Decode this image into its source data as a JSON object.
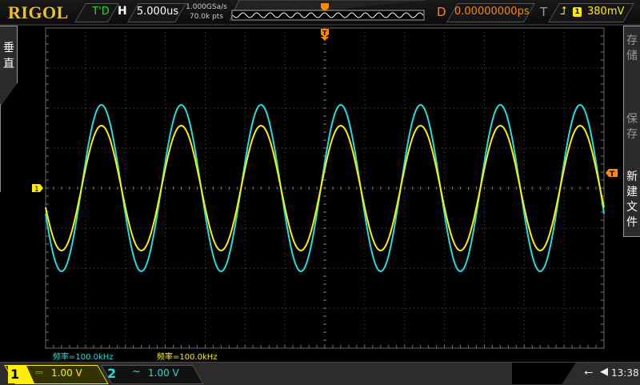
{
  "brand": "RIGOL",
  "header": {
    "run_status": "T'D",
    "horizontal_label": "H",
    "timebase": "5.000us",
    "sample_rate": "1.000GSa/s",
    "memory_depth": "70.0k pts",
    "delay_label": "D",
    "delay": "0.00000000ps",
    "trigger_label": "T",
    "trigger_edge_icon": "rising-edge-icon",
    "trigger_source": "1",
    "trigger_level": "380mV"
  },
  "left_menu": {
    "label": "垂直"
  },
  "right_menu": {
    "items": [
      {
        "label": "存储",
        "enabled": false
      },
      {
        "label": "保存",
        "enabled": false
      },
      {
        "label": "新建文件",
        "enabled": true
      }
    ]
  },
  "markers": {
    "ch1_ground": "1",
    "trigger_position": "T",
    "trigger_level": "T"
  },
  "measurements": [
    {
      "text": "频率=100.0kHz",
      "color": "#22dddd"
    },
    {
      "text": "频率=100.0kHz",
      "color": "#ffee00"
    }
  ],
  "channels": [
    {
      "number": "1",
      "coupling": "⎓",
      "scale": "1.00 V",
      "color": "#ffee00",
      "active": true
    },
    {
      "number": "2",
      "coupling": "~",
      "scale": "1.00 V",
      "color": "#22dddd",
      "active": false
    }
  ],
  "waveforms": [
    {
      "channel": "1",
      "color": "#ffee00",
      "frequency_hz": 100000,
      "amplitude_v": 1.56,
      "offset_v": 0,
      "rising_zero_crossing_us": -30.5
    },
    {
      "channel": "2",
      "color": "#22dddd",
      "frequency_hz": 100000,
      "amplitude_v": 2.08,
      "offset_v": 0,
      "rising_zero_crossing_us": -30.5
    }
  ],
  "grid": {
    "h_divisions": 14,
    "v_divisions": 8,
    "volts_per_div": 1,
    "us_per_div": 5
  },
  "status": {
    "usb_icon": "usb-icon",
    "speaker_icon": "speaker-icon",
    "time": "13:38"
  }
}
